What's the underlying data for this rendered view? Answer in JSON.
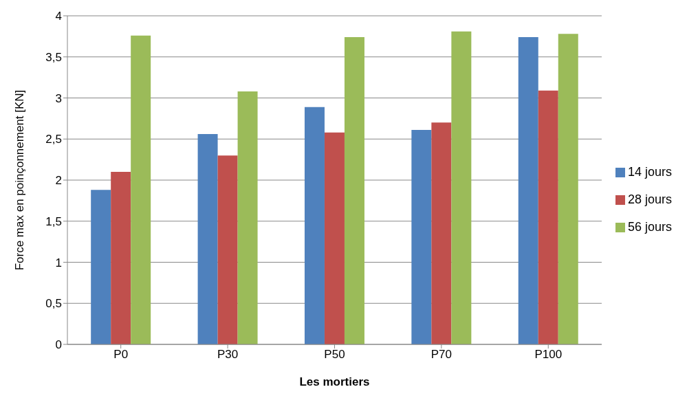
{
  "chart_data": {
    "type": "bar",
    "xlabel": "Les mortiers",
    "ylabel": "Force max en poinçonnement [KN]",
    "categories": [
      "P0",
      "P30",
      "P50",
      "P70",
      "P100"
    ],
    "series": [
      {
        "name": "14 jours",
        "color": "#4f81bd",
        "values": [
          1.88,
          2.56,
          2.89,
          2.61,
          3.74
        ]
      },
      {
        "name": "28 jours",
        "color": "#c0504d",
        "values": [
          2.1,
          2.3,
          2.58,
          2.7,
          3.09
        ]
      },
      {
        "name": "56 jours",
        "color": "#9bbb59",
        "values": [
          3.76,
          3.08,
          3.74,
          3.81,
          3.78
        ]
      }
    ],
    "ylim": [
      0,
      4
    ],
    "yticks": [
      0,
      {
        "value": 0.5,
        "label": "0,5"
      },
      1,
      {
        "value": 1.5,
        "label": "1,5"
      },
      2,
      {
        "value": 2.5,
        "label": "2,5"
      },
      3,
      {
        "value": 3.5,
        "label": "3,5"
      },
      4
    ],
    "grid": "y",
    "legend": "right"
  }
}
